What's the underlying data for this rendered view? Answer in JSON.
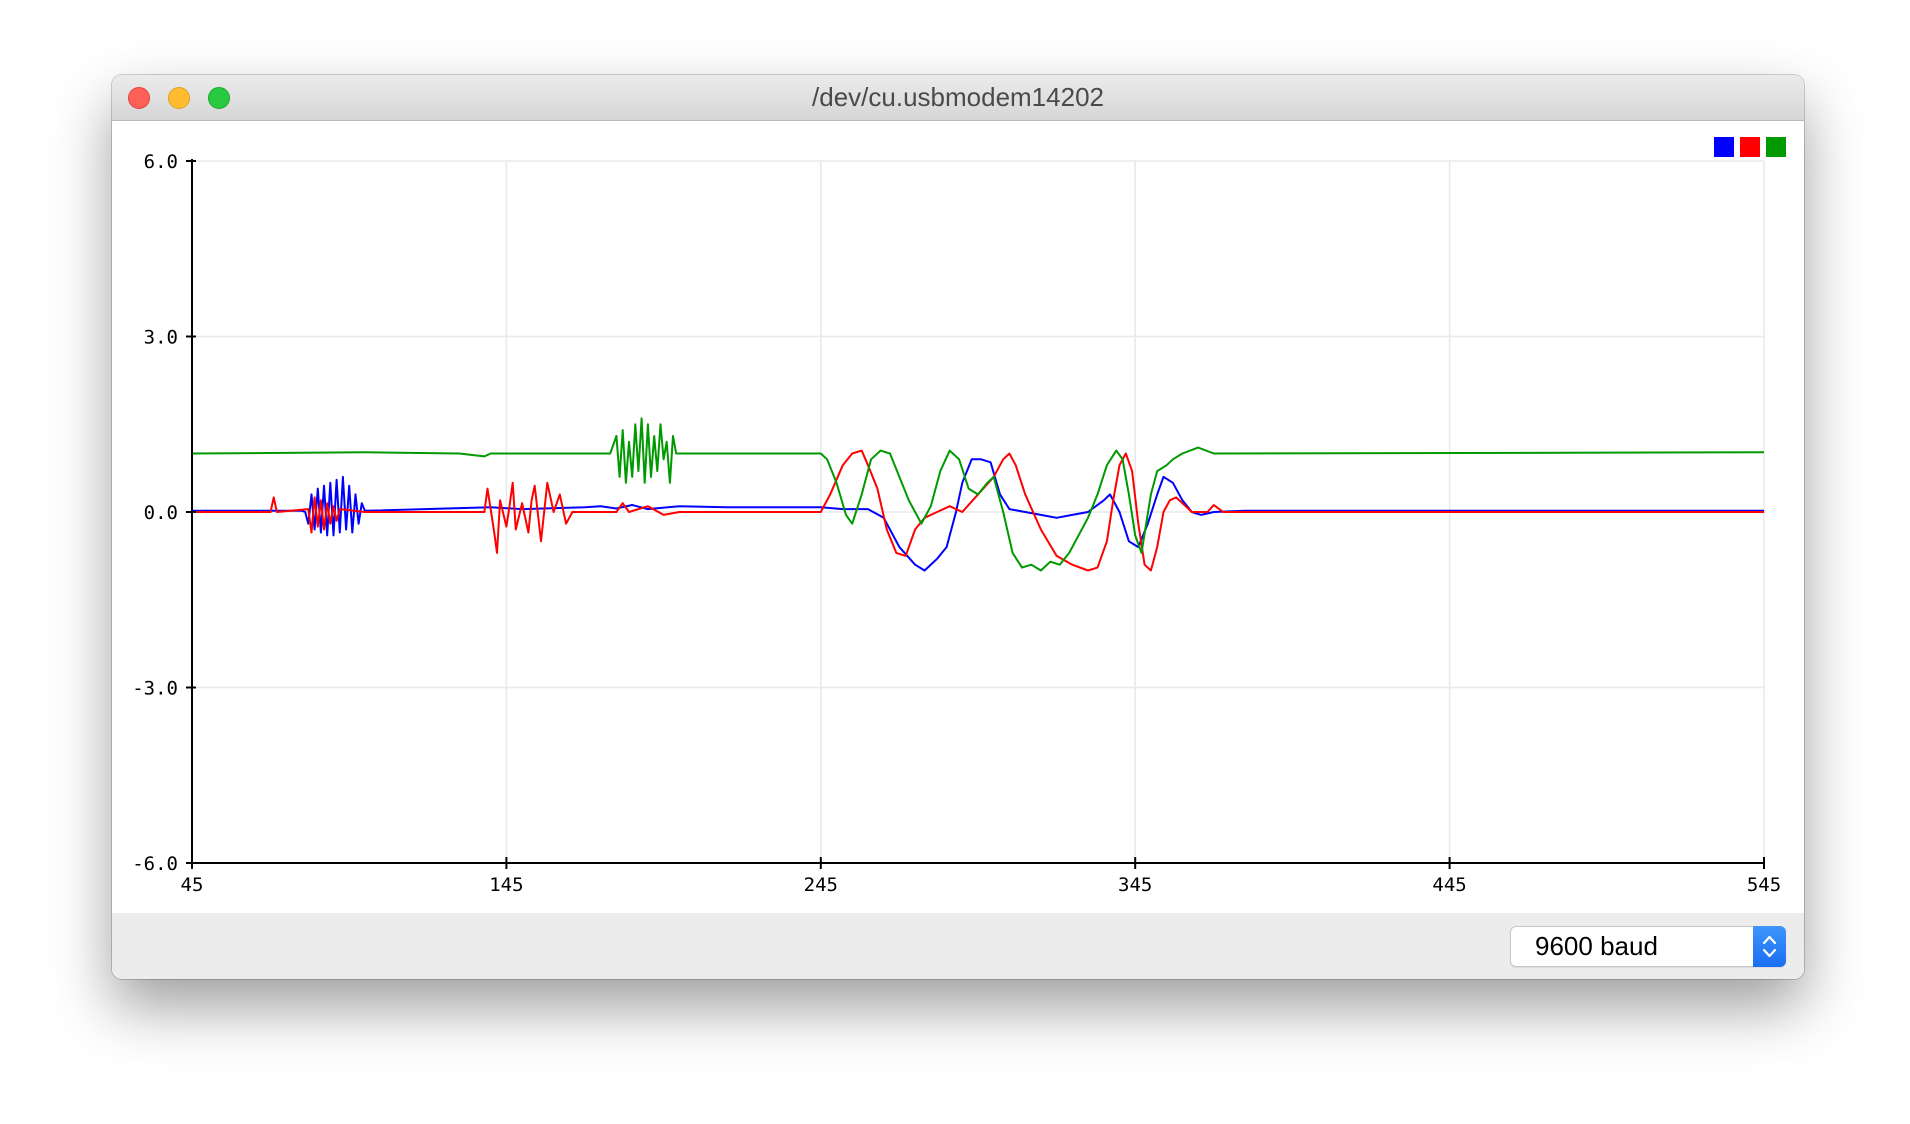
{
  "window": {
    "title": "/dev/cu.usbmodem14202"
  },
  "footer": {
    "baud_rate": "9600 baud"
  },
  "colors": {
    "series": [
      "#0000ff",
      "#ff0000",
      "#009900"
    ],
    "grid": "#e8e8e8",
    "axis": "#000000"
  },
  "chart_data": {
    "type": "line",
    "title": "",
    "xlabel": "",
    "ylabel": "",
    "xlim": [
      45,
      545
    ],
    "ylim": [
      -6.0,
      6.0
    ],
    "x_ticks": [
      45,
      145,
      245,
      345,
      445,
      545
    ],
    "x_tick_labels": [
      "45",
      "145",
      "245",
      "345",
      "445",
      "545"
    ],
    "y_ticks": [
      6.0,
      3.0,
      0.0,
      -3.0,
      -6.0
    ],
    "y_tick_labels": [
      "6.0",
      "3.0",
      "0.0",
      "-3.0",
      "-6.0"
    ],
    "grid": true,
    "legend": "top-right",
    "series": [
      {
        "color": "#0000ff",
        "points": [
          [
            45,
            0.02
          ],
          [
            80,
            0.02
          ],
          [
            81,
            0.0
          ],
          [
            82,
            -0.2
          ],
          [
            83,
            0.3
          ],
          [
            84,
            -0.3
          ],
          [
            85,
            0.4
          ],
          [
            86,
            -0.35
          ],
          [
            87,
            0.45
          ],
          [
            88,
            -0.4
          ],
          [
            89,
            0.5
          ],
          [
            90,
            -0.4
          ],
          [
            91,
            0.55
          ],
          [
            92,
            -0.35
          ],
          [
            93,
            0.6
          ],
          [
            94,
            -0.3
          ],
          [
            95,
            0.45
          ],
          [
            96,
            -0.35
          ],
          [
            97,
            0.3
          ],
          [
            98,
            -0.2
          ],
          [
            99,
            0.15
          ],
          [
            100,
            0.02
          ],
          [
            140,
            0.08
          ],
          [
            150,
            0.05
          ],
          [
            170,
            0.08
          ],
          [
            175,
            0.1
          ],
          [
            180,
            0.06
          ],
          [
            185,
            0.12
          ],
          [
            190,
            0.05
          ],
          [
            200,
            0.1
          ],
          [
            215,
            0.08
          ],
          [
            245,
            0.08
          ],
          [
            252,
            0.05
          ],
          [
            260,
            0.05
          ],
          [
            265,
            -0.1
          ],
          [
            270,
            -0.6
          ],
          [
            275,
            -0.9
          ],
          [
            278,
            -1.0
          ],
          [
            282,
            -0.8
          ],
          [
            285,
            -0.6
          ],
          [
            288,
            0.0
          ],
          [
            290,
            0.5
          ],
          [
            293,
            0.9
          ],
          [
            296,
            0.9
          ],
          [
            299,
            0.85
          ],
          [
            302,
            0.3
          ],
          [
            305,
            0.05
          ],
          [
            310,
            0.0
          ],
          [
            315,
            -0.05
          ],
          [
            320,
            -0.1
          ],
          [
            325,
            -0.05
          ],
          [
            330,
            0.0
          ],
          [
            335,
            0.2
          ],
          [
            337,
            0.3
          ],
          [
            340,
            0.0
          ],
          [
            343,
            -0.5
          ],
          [
            346,
            -0.6
          ],
          [
            349,
            -0.2
          ],
          [
            352,
            0.3
          ],
          [
            354,
            0.6
          ],
          [
            357,
            0.5
          ],
          [
            360,
            0.2
          ],
          [
            363,
            0.0
          ],
          [
            366,
            -0.05
          ],
          [
            370,
            0.0
          ],
          [
            380,
            0.02
          ],
          [
            545,
            0.02
          ]
        ]
      },
      {
        "color": "#ff0000",
        "points": [
          [
            45,
            0.0
          ],
          [
            70,
            0.0
          ],
          [
            71,
            0.25
          ],
          [
            72,
            0.0
          ],
          [
            82,
            0.05
          ],
          [
            83,
            -0.35
          ],
          [
            84,
            0.25
          ],
          [
            85,
            -0.25
          ],
          [
            86,
            0.2
          ],
          [
            87,
            -0.3
          ],
          [
            88,
            0.15
          ],
          [
            89,
            -0.2
          ],
          [
            90,
            0.1
          ],
          [
            91,
            -0.15
          ],
          [
            92,
            0.05
          ],
          [
            100,
            0.0
          ],
          [
            138,
            0.0
          ],
          [
            139,
            0.4
          ],
          [
            141,
            -0.3
          ],
          [
            142,
            -0.7
          ],
          [
            143,
            0.2
          ],
          [
            145,
            -0.25
          ],
          [
            146,
            0.1
          ],
          [
            147,
            0.5
          ],
          [
            148,
            -0.3
          ],
          [
            150,
            0.15
          ],
          [
            152,
            -0.35
          ],
          [
            153,
            0.2
          ],
          [
            154,
            0.45
          ],
          [
            156,
            -0.5
          ],
          [
            158,
            0.5
          ],
          [
            160,
            0.0
          ],
          [
            162,
            0.3
          ],
          [
            164,
            -0.2
          ],
          [
            166,
            0.0
          ],
          [
            180,
            0.0
          ],
          [
            182,
            0.15
          ],
          [
            184,
            0.0
          ],
          [
            190,
            0.1
          ],
          [
            195,
            -0.05
          ],
          [
            200,
            0.0
          ],
          [
            245,
            0.0
          ],
          [
            248,
            0.3
          ],
          [
            252,
            0.8
          ],
          [
            255,
            1.0
          ],
          [
            258,
            1.05
          ],
          [
            260,
            0.8
          ],
          [
            263,
            0.4
          ],
          [
            266,
            -0.3
          ],
          [
            269,
            -0.7
          ],
          [
            272,
            -0.75
          ],
          [
            275,
            -0.3
          ],
          [
            278,
            -0.1
          ],
          [
            282,
            0.0
          ],
          [
            286,
            0.1
          ],
          [
            290,
            0.0
          ],
          [
            295,
            0.3
          ],
          [
            300,
            0.6
          ],
          [
            303,
            0.9
          ],
          [
            305,
            1.0
          ],
          [
            307,
            0.8
          ],
          [
            310,
            0.3
          ],
          [
            315,
            -0.3
          ],
          [
            320,
            -0.75
          ],
          [
            325,
            -0.9
          ],
          [
            330,
            -1.0
          ],
          [
            333,
            -0.95
          ],
          [
            336,
            -0.5
          ],
          [
            338,
            0.2
          ],
          [
            340,
            0.8
          ],
          [
            342,
            1.0
          ],
          [
            344,
            0.7
          ],
          [
            346,
            -0.2
          ],
          [
            348,
            -0.9
          ],
          [
            350,
            -1.0
          ],
          [
            352,
            -0.6
          ],
          [
            354,
            0.0
          ],
          [
            356,
            0.2
          ],
          [
            358,
            0.25
          ],
          [
            360,
            0.15
          ],
          [
            363,
            0.0
          ],
          [
            368,
            0.0
          ],
          [
            370,
            0.12
          ],
          [
            373,
            0.0
          ],
          [
            545,
            0.0
          ]
        ]
      },
      {
        "color": "#009900",
        "points": [
          [
            45,
            1.0
          ],
          [
            100,
            1.02
          ],
          [
            130,
            1.0
          ],
          [
            138,
            0.95
          ],
          [
            140,
            1.0
          ],
          [
            178,
            1.0
          ],
          [
            180,
            1.3
          ],
          [
            181,
            0.6
          ],
          [
            182,
            1.4
          ],
          [
            183,
            0.5
          ],
          [
            184,
            1.2
          ],
          [
            185,
            0.6
          ],
          [
            186,
            1.5
          ],
          [
            187,
            0.7
          ],
          [
            188,
            1.6
          ],
          [
            189,
            0.5
          ],
          [
            190,
            1.5
          ],
          [
            191,
            0.6
          ],
          [
            192,
            1.3
          ],
          [
            193,
            0.7
          ],
          [
            194,
            1.5
          ],
          [
            195,
            0.9
          ],
          [
            196,
            1.2
          ],
          [
            197,
            0.5
          ],
          [
            198,
            1.3
          ],
          [
            199,
            1.0
          ],
          [
            200,
            1.0
          ],
          [
            245,
            1.0
          ],
          [
            247,
            0.9
          ],
          [
            250,
            0.5
          ],
          [
            253,
            -0.05
          ],
          [
            255,
            -0.2
          ],
          [
            258,
            0.3
          ],
          [
            261,
            0.9
          ],
          [
            264,
            1.05
          ],
          [
            267,
            1.0
          ],
          [
            270,
            0.6
          ],
          [
            273,
            0.2
          ],
          [
            275,
            0.0
          ],
          [
            277,
            -0.2
          ],
          [
            280,
            0.1
          ],
          [
            283,
            0.7
          ],
          [
            286,
            1.05
          ],
          [
            289,
            0.9
          ],
          [
            292,
            0.4
          ],
          [
            295,
            0.3
          ],
          [
            298,
            0.5
          ],
          [
            300,
            0.6
          ],
          [
            303,
            0.0
          ],
          [
            306,
            -0.7
          ],
          [
            309,
            -0.95
          ],
          [
            312,
            -0.9
          ],
          [
            315,
            -1.0
          ],
          [
            318,
            -0.85
          ],
          [
            321,
            -0.9
          ],
          [
            324,
            -0.7
          ],
          [
            327,
            -0.4
          ],
          [
            330,
            -0.1
          ],
          [
            333,
            0.3
          ],
          [
            336,
            0.8
          ],
          [
            339,
            1.05
          ],
          [
            341,
            0.9
          ],
          [
            343,
            0.3
          ],
          [
            345,
            -0.4
          ],
          [
            347,
            -0.7
          ],
          [
            350,
            0.3
          ],
          [
            352,
            0.7
          ],
          [
            355,
            0.8
          ],
          [
            357,
            0.9
          ],
          [
            360,
            1.0
          ],
          [
            365,
            1.1
          ],
          [
            370,
            1.0
          ],
          [
            545,
            1.02
          ]
        ]
      }
    ]
  }
}
